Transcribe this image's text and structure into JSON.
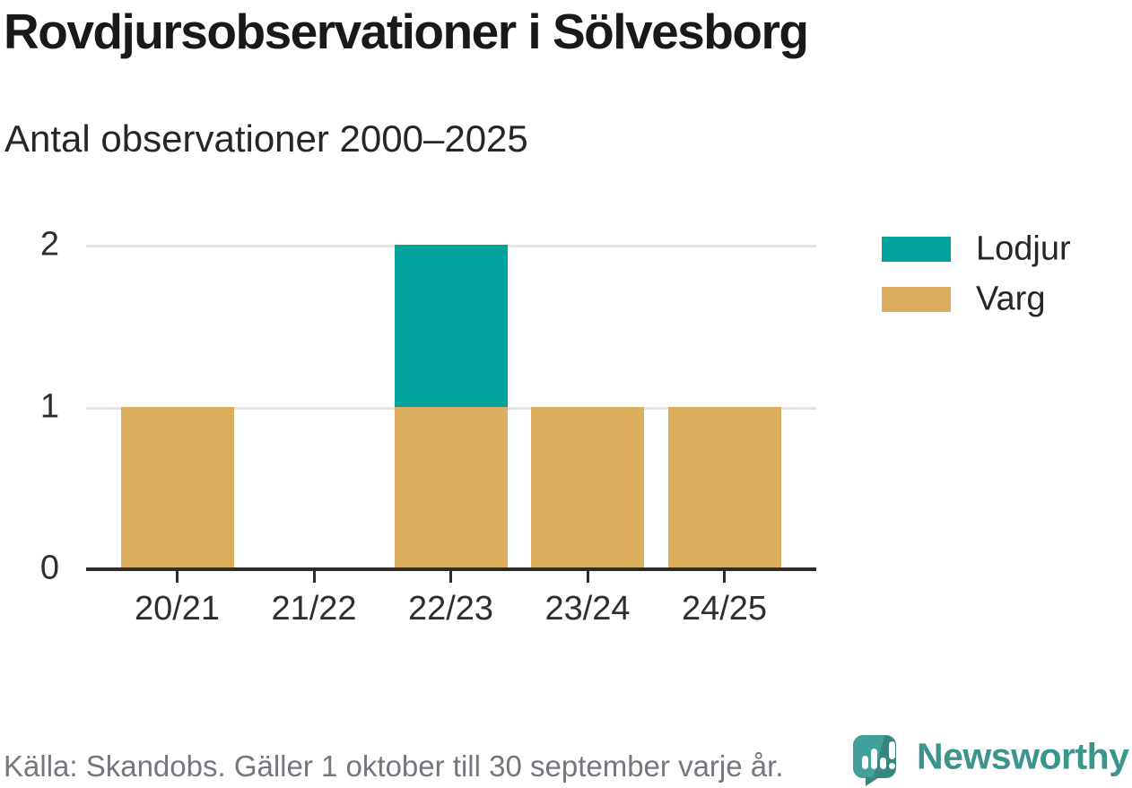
{
  "header": {
    "title": "Rovdjursobservationer i Sölvesborg",
    "subtitle": "Antal observationer 2000–2025"
  },
  "chart_data": {
    "type": "bar",
    "stacked": true,
    "orientation": "vertical",
    "categories": [
      "20/21",
      "21/22",
      "22/23",
      "23/24",
      "24/25"
    ],
    "series": [
      {
        "name": "Lodjur",
        "color": "#00A29B",
        "values": [
          0,
          0,
          1,
          0,
          0
        ]
      },
      {
        "name": "Varg",
        "color": "#DBAE5E",
        "values": [
          1,
          0,
          1,
          1,
          1
        ]
      }
    ],
    "title": "Rovdjursobservationer i Sölvesborg",
    "subtitle": "Antal observationer 2000–2025",
    "xlabel": "",
    "ylabel": "",
    "ylim": [
      0,
      2
    ],
    "yticks": [
      0,
      1,
      2
    ],
    "grid": "horizontal-only",
    "gridline_color": "#E3E3E3",
    "axis_color": "#2D2D2D",
    "legend_position": "right-top",
    "legend": [
      "Lodjur",
      "Varg"
    ]
  },
  "footer": {
    "source_note": "Källa: Skandobs. Gäller 1 oktober till 30 september varje år.",
    "brand_name": "Newsworthy",
    "brand_color": "#3C948D"
  }
}
